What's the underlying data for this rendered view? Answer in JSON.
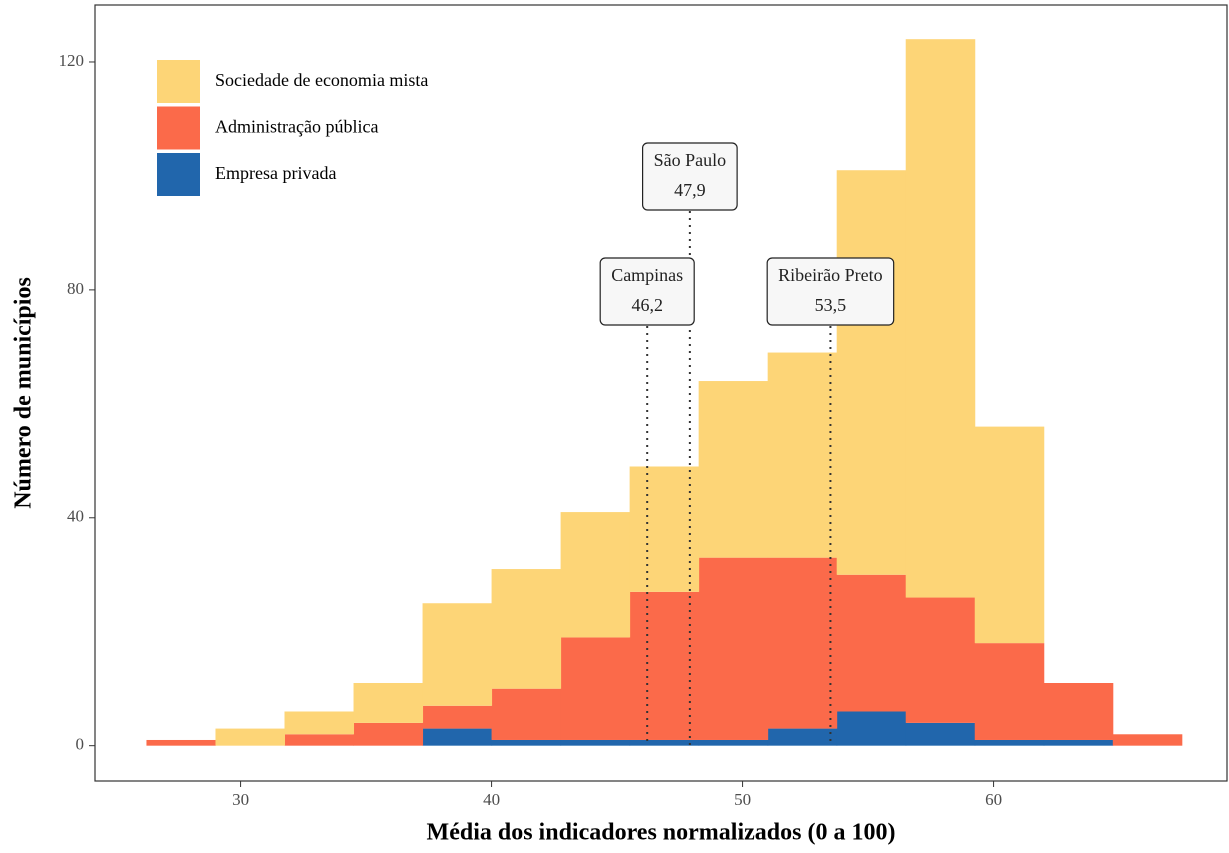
{
  "chart_data": {
    "type": "histogram",
    "x_label": "Média dos indicadores normalizados (0 a 100)",
    "y_label": "Número de municípios",
    "bins": [
      26.25,
      29,
      31.75,
      34.5,
      37.25,
      40,
      42.75,
      45.5,
      48.25,
      51,
      53.75,
      56.5,
      59.25,
      62,
      64.75,
      67.5
    ],
    "series": [
      {
        "name": "Sociedade de economia mista",
        "color": "#fdd577",
        "values": [
          0,
          3,
          4,
          7,
          18,
          21,
          22,
          22,
          31,
          36,
          71,
          98,
          38,
          0,
          0
        ]
      },
      {
        "name": "Administração pública",
        "color": "#fb6a4a",
        "values": [
          1,
          0,
          2,
          4,
          4,
          9,
          18,
          26,
          32,
          30,
          24,
          22,
          17,
          10,
          2
        ]
      },
      {
        "name": "Empresa privada",
        "color": "#2166ac",
        "values": [
          0,
          0,
          0,
          0,
          3,
          1,
          1,
          1,
          1,
          3,
          6,
          4,
          1,
          1,
          0
        ]
      }
    ],
    "stacked": true,
    "legend_position": "top-left",
    "xlim": [
      24.2,
      69.3
    ],
    "xticks": [
      30,
      40,
      50,
      60
    ],
    "ylim": [
      -6.2,
      130
    ],
    "yticks": [
      0,
      40,
      80,
      120
    ],
    "annotations": [
      {
        "name": "Campinas",
        "x": 46.2,
        "label": "46,2"
      },
      {
        "name": "São Paulo",
        "x": 47.9,
        "label": "47,9"
      },
      {
        "name": "Ribeirão Preto",
        "x": 53.5,
        "label": "53,5"
      }
    ]
  }
}
